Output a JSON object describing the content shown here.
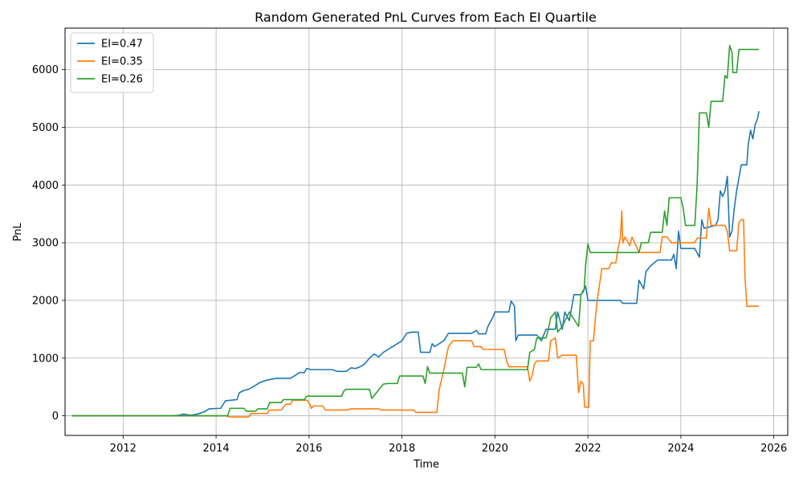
{
  "chart_data": {
    "type": "line",
    "title": "Random Generated PnL Curves from Each EI Quartile",
    "xlabel": "Time",
    "ylabel": "PnL",
    "xlim": [
      2010.75,
      2026.3
    ],
    "ylim": [
      -340,
      6720
    ],
    "x_ticks": [
      2012,
      2014,
      2016,
      2018,
      2020,
      2022,
      2024,
      2026
    ],
    "y_ticks": [
      0,
      1000,
      2000,
      3000,
      4000,
      5000,
      6000
    ],
    "grid": true,
    "legend_position": "top-left",
    "series": [
      {
        "name": "EI=0.47",
        "color": "#1f77b4",
        "points": [
          [
            2010.9,
            0
          ],
          [
            2013.0,
            0
          ],
          [
            2013.2,
            10
          ],
          [
            2013.3,
            30
          ],
          [
            2013.45,
            10
          ],
          [
            2013.6,
            30
          ],
          [
            2013.75,
            70
          ],
          [
            2013.85,
            120
          ],
          [
            2014.1,
            130
          ],
          [
            2014.2,
            260
          ],
          [
            2014.45,
            280
          ],
          [
            2014.5,
            400
          ],
          [
            2014.6,
            440
          ],
          [
            2014.7,
            460
          ],
          [
            2014.85,
            530
          ],
          [
            2014.95,
            580
          ],
          [
            2015.1,
            620
          ],
          [
            2015.3,
            650
          ],
          [
            2015.6,
            650
          ],
          [
            2015.7,
            700
          ],
          [
            2015.8,
            750
          ],
          [
            2015.9,
            750
          ],
          [
            2015.95,
            820
          ],
          [
            2016.05,
            800
          ],
          [
            2016.5,
            800
          ],
          [
            2016.6,
            770
          ],
          [
            2016.8,
            770
          ],
          [
            2016.9,
            830
          ],
          [
            2017.0,
            820
          ],
          [
            2017.1,
            850
          ],
          [
            2017.2,
            900
          ],
          [
            2017.3,
            1000
          ],
          [
            2017.4,
            1070
          ],
          [
            2017.5,
            1020
          ],
          [
            2017.6,
            1100
          ],
          [
            2017.7,
            1150
          ],
          [
            2017.8,
            1200
          ],
          [
            2017.9,
            1250
          ],
          [
            2018.0,
            1300
          ],
          [
            2018.1,
            1430
          ],
          [
            2018.2,
            1450
          ],
          [
            2018.35,
            1450
          ],
          [
            2018.4,
            1100
          ],
          [
            2018.6,
            1100
          ],
          [
            2018.65,
            1250
          ],
          [
            2018.7,
            1200
          ],
          [
            2018.8,
            1250
          ],
          [
            2018.9,
            1300
          ],
          [
            2019.0,
            1430
          ],
          [
            2019.5,
            1430
          ],
          [
            2019.6,
            1480
          ],
          [
            2019.65,
            1420
          ],
          [
            2019.8,
            1420
          ],
          [
            2019.85,
            1550
          ],
          [
            2019.95,
            1700
          ],
          [
            2020.0,
            1800
          ],
          [
            2020.3,
            1800
          ],
          [
            2020.35,
            1990
          ],
          [
            2020.42,
            1900
          ],
          [
            2020.45,
            1300
          ],
          [
            2020.5,
            1400
          ],
          [
            2020.9,
            1400
          ],
          [
            2021.0,
            1300
          ],
          [
            2021.1,
            1500
          ],
          [
            2021.3,
            1500
          ],
          [
            2021.35,
            1800
          ],
          [
            2021.45,
            1500
          ],
          [
            2021.5,
            1800
          ],
          [
            2021.6,
            1650
          ],
          [
            2021.7,
            2100
          ],
          [
            2021.85,
            2100
          ],
          [
            2021.9,
            2150
          ],
          [
            2021.95,
            2250
          ],
          [
            2022.0,
            2000
          ],
          [
            2022.7,
            2000
          ],
          [
            2022.75,
            1950
          ],
          [
            2023.05,
            1950
          ],
          [
            2023.1,
            2350
          ],
          [
            2023.2,
            2200
          ],
          [
            2023.25,
            2500
          ],
          [
            2023.35,
            2600
          ],
          [
            2023.5,
            2700
          ],
          [
            2023.8,
            2700
          ],
          [
            2023.85,
            2800
          ],
          [
            2023.9,
            2550
          ],
          [
            2023.95,
            3200
          ],
          [
            2024.0,
            2900
          ],
          [
            2024.3,
            2900
          ],
          [
            2024.4,
            2750
          ],
          [
            2024.45,
            3400
          ],
          [
            2024.5,
            3250
          ],
          [
            2024.75,
            3300
          ],
          [
            2024.8,
            3400
          ],
          [
            2024.85,
            3900
          ],
          [
            2024.9,
            3800
          ],
          [
            2024.95,
            3900
          ],
          [
            2025.0,
            4150
          ],
          [
            2025.05,
            3100
          ],
          [
            2025.1,
            3200
          ],
          [
            2025.15,
            3600
          ],
          [
            2025.2,
            3900
          ],
          [
            2025.3,
            4350
          ],
          [
            2025.42,
            4350
          ],
          [
            2025.45,
            4700
          ],
          [
            2025.5,
            4950
          ],
          [
            2025.55,
            4800
          ],
          [
            2025.6,
            5050
          ],
          [
            2025.65,
            5150
          ],
          [
            2025.68,
            5280
          ]
        ]
      },
      {
        "name": "EI=0.35",
        "color": "#ff7f0e",
        "points": [
          [
            2010.9,
            0
          ],
          [
            2014.2,
            0
          ],
          [
            2014.25,
            -10
          ],
          [
            2014.3,
            -20
          ],
          [
            2014.7,
            -20
          ],
          [
            2014.75,
            40
          ],
          [
            2015.1,
            40
          ],
          [
            2015.15,
            100
          ],
          [
            2015.4,
            100
          ],
          [
            2015.5,
            200
          ],
          [
            2015.6,
            200
          ],
          [
            2015.65,
            270
          ],
          [
            2015.95,
            270
          ],
          [
            2016.0,
            230
          ],
          [
            2016.05,
            130
          ],
          [
            2016.1,
            170
          ],
          [
            2016.3,
            170
          ],
          [
            2016.35,
            100
          ],
          [
            2016.8,
            100
          ],
          [
            2016.9,
            120
          ],
          [
            2017.5,
            120
          ],
          [
            2017.55,
            100
          ],
          [
            2018.25,
            100
          ],
          [
            2018.3,
            60
          ],
          [
            2018.75,
            60
          ],
          [
            2018.8,
            450
          ],
          [
            2018.9,
            800
          ],
          [
            2019.0,
            1200
          ],
          [
            2019.1,
            1300
          ],
          [
            2019.5,
            1300
          ],
          [
            2019.55,
            1200
          ],
          [
            2019.7,
            1200
          ],
          [
            2019.75,
            1150
          ],
          [
            2020.2,
            1150
          ],
          [
            2020.25,
            950
          ],
          [
            2020.3,
            850
          ],
          [
            2020.7,
            850
          ],
          [
            2020.75,
            600
          ],
          [
            2020.8,
            700
          ],
          [
            2020.85,
            900
          ],
          [
            2020.9,
            950
          ],
          [
            2021.15,
            950
          ],
          [
            2021.2,
            1300
          ],
          [
            2021.3,
            1350
          ],
          [
            2021.35,
            1000
          ],
          [
            2021.45,
            1050
          ],
          [
            2021.75,
            1050
          ],
          [
            2021.8,
            400
          ],
          [
            2021.85,
            600
          ],
          [
            2021.9,
            550
          ],
          [
            2021.93,
            150
          ],
          [
            2022.02,
            150
          ],
          [
            2022.05,
            1300
          ],
          [
            2022.12,
            1300
          ],
          [
            2022.15,
            1600
          ],
          [
            2022.2,
            2000
          ],
          [
            2022.3,
            2550
          ],
          [
            2022.45,
            2550
          ],
          [
            2022.5,
            2650
          ],
          [
            2022.6,
            2650
          ],
          [
            2022.65,
            2900
          ],
          [
            2022.7,
            3100
          ],
          [
            2022.73,
            3550
          ],
          [
            2022.75,
            3000
          ],
          [
            2022.8,
            3100
          ],
          [
            2022.9,
            2950
          ],
          [
            2022.95,
            3100
          ],
          [
            2023.1,
            2830
          ],
          [
            2023.55,
            2830
          ],
          [
            2023.6,
            3100
          ],
          [
            2023.7,
            3100
          ],
          [
            2023.8,
            3000
          ],
          [
            2024.3,
            3000
          ],
          [
            2024.35,
            3080
          ],
          [
            2024.55,
            3080
          ],
          [
            2024.6,
            3600
          ],
          [
            2024.65,
            3300
          ],
          [
            2024.95,
            3300
          ],
          [
            2025.0,
            3200
          ],
          [
            2025.05,
            2860
          ],
          [
            2025.2,
            2860
          ],
          [
            2025.25,
            3350
          ],
          [
            2025.3,
            3400
          ],
          [
            2025.35,
            3400
          ],
          [
            2025.38,
            2400
          ],
          [
            2025.42,
            1900
          ],
          [
            2025.68,
            1900
          ]
        ]
      },
      {
        "name": "EI=0.26",
        "color": "#2ca02c",
        "points": [
          [
            2010.9,
            0
          ],
          [
            2014.25,
            0
          ],
          [
            2014.3,
            130
          ],
          [
            2014.6,
            130
          ],
          [
            2014.65,
            80
          ],
          [
            2014.85,
            80
          ],
          [
            2014.9,
            120
          ],
          [
            2015.1,
            120
          ],
          [
            2015.15,
            230
          ],
          [
            2015.4,
            230
          ],
          [
            2015.45,
            280
          ],
          [
            2015.9,
            280
          ],
          [
            2015.95,
            340
          ],
          [
            2016.7,
            340
          ],
          [
            2016.75,
            430
          ],
          [
            2016.8,
            460
          ],
          [
            2017.3,
            460
          ],
          [
            2017.35,
            300
          ],
          [
            2017.45,
            400
          ],
          [
            2017.6,
            550
          ],
          [
            2017.7,
            560
          ],
          [
            2017.9,
            560
          ],
          [
            2017.95,
            690
          ],
          [
            2018.45,
            690
          ],
          [
            2018.5,
            560
          ],
          [
            2018.55,
            850
          ],
          [
            2018.6,
            740
          ],
          [
            2019.3,
            740
          ],
          [
            2019.35,
            500
          ],
          [
            2019.4,
            840
          ],
          [
            2019.6,
            840
          ],
          [
            2019.65,
            900
          ],
          [
            2019.7,
            800
          ],
          [
            2020.7,
            800
          ],
          [
            2020.75,
            1100
          ],
          [
            2020.85,
            1150
          ],
          [
            2020.9,
            1350
          ],
          [
            2021.1,
            1350
          ],
          [
            2021.15,
            1500
          ],
          [
            2021.2,
            1700
          ],
          [
            2021.3,
            1800
          ],
          [
            2021.35,
            1450
          ],
          [
            2021.45,
            1550
          ],
          [
            2021.6,
            1800
          ],
          [
            2021.8,
            1550
          ],
          [
            2021.85,
            2100
          ],
          [
            2021.92,
            2200
          ],
          [
            2021.95,
            2600
          ],
          [
            2022.0,
            2980
          ],
          [
            2022.05,
            2830
          ],
          [
            2023.1,
            2830
          ],
          [
            2023.15,
            3000
          ],
          [
            2023.3,
            3000
          ],
          [
            2023.35,
            3180
          ],
          [
            2023.6,
            3180
          ],
          [
            2023.65,
            3550
          ],
          [
            2023.7,
            3300
          ],
          [
            2023.75,
            3780
          ],
          [
            2024.0,
            3780
          ],
          [
            2024.05,
            3600
          ],
          [
            2024.1,
            3300
          ],
          [
            2024.3,
            3300
          ],
          [
            2024.35,
            4000
          ],
          [
            2024.4,
            5250
          ],
          [
            2024.55,
            5250
          ],
          [
            2024.6,
            5000
          ],
          [
            2024.65,
            5450
          ],
          [
            2024.9,
            5450
          ],
          [
            2024.95,
            5900
          ],
          [
            2025.0,
            5850
          ],
          [
            2025.05,
            6420
          ],
          [
            2025.1,
            6300
          ],
          [
            2025.12,
            5950
          ],
          [
            2025.2,
            5950
          ],
          [
            2025.25,
            6350
          ],
          [
            2025.68,
            6350
          ]
        ]
      }
    ]
  }
}
